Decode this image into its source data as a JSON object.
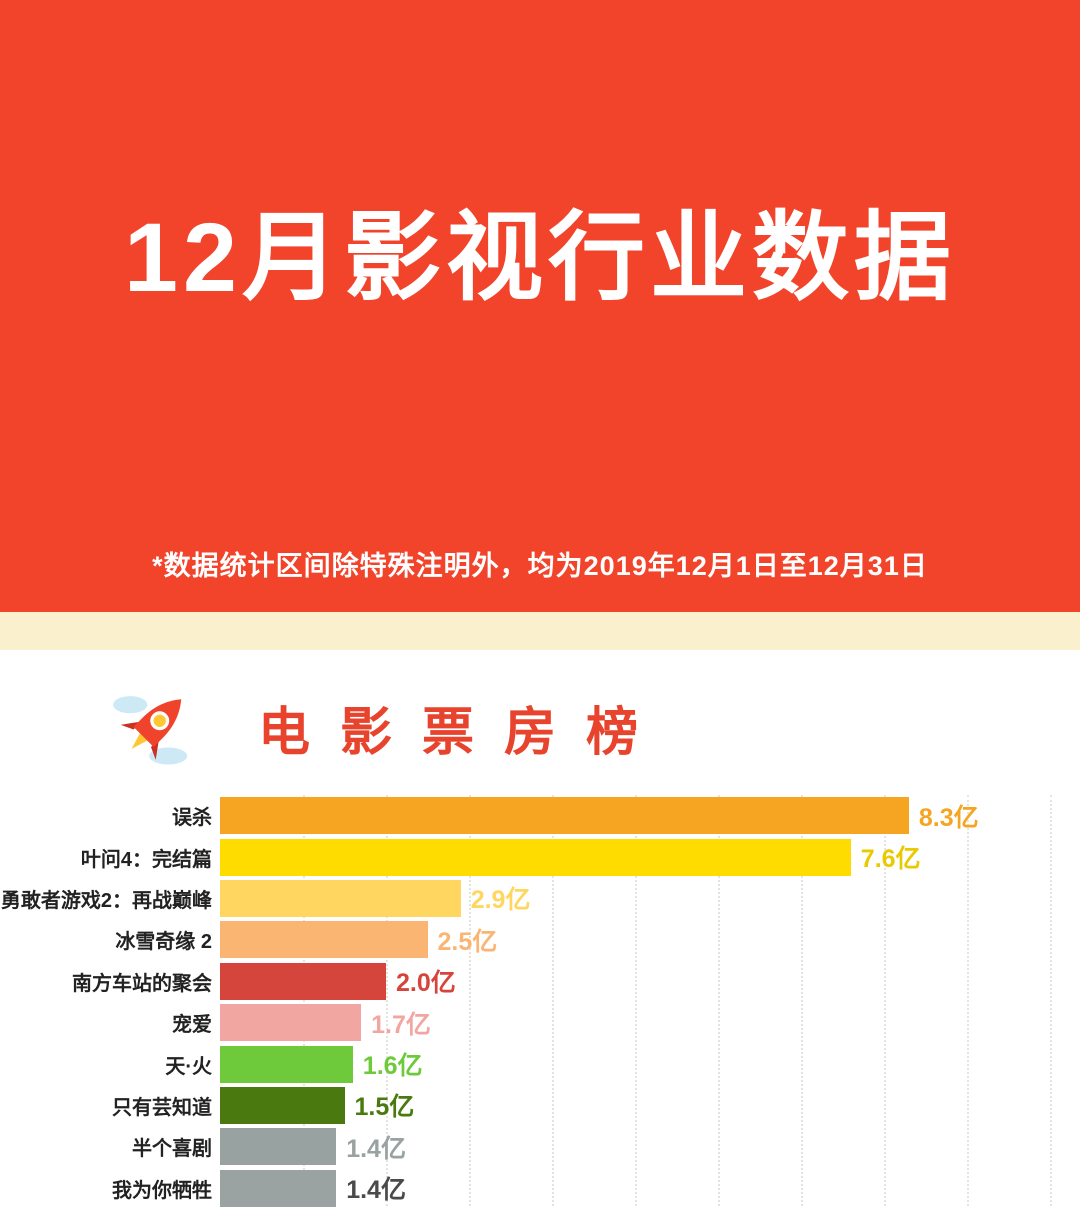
{
  "theme": {
    "hero_background": "#F2432B",
    "band_background": "#FBF0CD",
    "section_title_color": "#E8432D",
    "grid_color": "#E5E4DC"
  },
  "header": {
    "title": "12月影视行业数据",
    "note": "*数据统计区间除特殊注明外，均为2019年12月1日至12月31日"
  },
  "section": {
    "title": "电影票房榜",
    "icon": "rocket-icon"
  },
  "chart_data": {
    "type": "bar",
    "orientation": "horizontal",
    "title": "电影票房榜",
    "unit": "亿",
    "xlim": [
      0,
      10
    ],
    "grid": true,
    "categories": [
      "误杀",
      "叶问4：完结篇",
      "勇敢者游戏2：再战巅峰",
      "冰雪奇缘 2",
      "南方车站的聚会",
      "宠爱",
      "天·火",
      "只有芸知道",
      "半个喜剧",
      "我为你牺牲"
    ],
    "values": [
      8.3,
      7.6,
      2.9,
      2.5,
      2.0,
      1.7,
      1.6,
      1.5,
      1.4,
      1.4
    ],
    "value_labels": [
      "8.3亿",
      "7.6亿",
      "2.9亿",
      "2.5亿",
      "2.0亿",
      "1.7亿",
      "1.6亿",
      "1.5亿",
      "1.4亿",
      "1.4亿"
    ],
    "bar_colors": [
      "#F6A523",
      "#FFDC00",
      "#FFD65F",
      "#FBB573",
      "#D6453C",
      "#F2A6A1",
      "#6EC93B",
      "#49790F",
      "#98A2A1",
      "#9AA3A2"
    ],
    "value_colors": [
      "#F6A523",
      "#E9C900",
      "#FFD65F",
      "#FBB573",
      "#D6453C",
      "#F2A6A1",
      "#6EC93B",
      "#49790F",
      "#98A2A1",
      "#4A4A4A"
    ]
  }
}
